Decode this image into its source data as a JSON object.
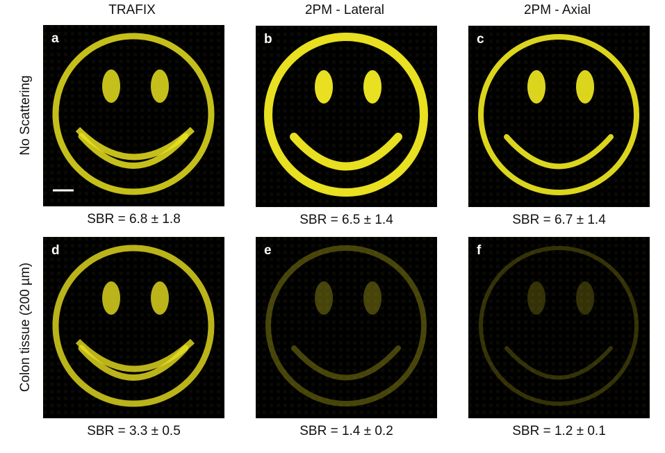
{
  "columns": [
    "TRAFIX",
    "2PM - Lateral",
    "2PM - Axial"
  ],
  "rows": [
    "No Scattering",
    "Colon tissue (200 µm)"
  ],
  "panels": [
    {
      "letter": "a",
      "sbr": "SBR = 6.8 ± 1.8"
    },
    {
      "letter": "b",
      "sbr": "SBR = 6.5 ± 1.4"
    },
    {
      "letter": "c",
      "sbr": "SBR = 6.7 ± 1.4"
    },
    {
      "letter": "d",
      "sbr": "SBR = 3.3 ± 0.5"
    },
    {
      "letter": "e",
      "sbr": "SBR = 1.4 ± 0.2"
    },
    {
      "letter": "f",
      "sbr": "SBR = 1.2 ± 0.1"
    }
  ]
}
